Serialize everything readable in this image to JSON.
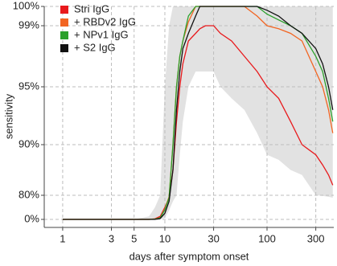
{
  "chart_data": {
    "type": "line",
    "xlabel": "days after symptom onset",
    "ylabel": "sensitivity",
    "xscale": "log",
    "xlim": [
      0.66,
      450
    ],
    "xticks": [
      1,
      3,
      5,
      10,
      30,
      100,
      300
    ],
    "ylim": [
      0,
      100
    ],
    "yticks": [
      {
        "value": 0,
        "label": "0%"
      },
      {
        "value": 80,
        "label": "80%"
      },
      {
        "value": 90,
        "label": "90%"
      },
      {
        "value": 95,
        "label": "95%"
      },
      {
        "value": 99,
        "label": "99%"
      },
      {
        "value": 100,
        "label": "100%"
      }
    ],
    "grid": true,
    "legend": "upper left",
    "x": [
      1,
      5,
      7,
      8,
      9,
      10,
      11,
      12,
      13,
      14,
      15,
      17,
      20,
      22,
      25,
      30,
      35,
      45,
      60,
      80,
      100,
      130,
      170,
      220,
      300,
      350,
      400,
      440
    ],
    "band": {
      "color": "#e2e2e2",
      "lower": [
        0,
        0,
        0,
        0,
        0,
        5,
        30,
        60,
        80,
        88,
        92,
        95,
        96,
        96,
        96,
        96,
        95,
        94,
        93,
        91,
        88,
        87,
        85,
        84,
        80,
        78,
        75,
        72
      ],
      "upper": [
        0,
        0,
        10,
        40,
        80,
        95,
        99,
        100,
        100,
        100,
        100,
        100,
        100,
        100,
        100,
        100,
        100,
        100,
        100,
        100,
        100,
        100,
        100,
        100,
        100,
        100,
        100,
        100
      ]
    },
    "series": [
      {
        "name": "Stri IgG",
        "color": "#e8191c",
        "values": [
          0,
          0,
          0,
          2,
          10,
          40,
          70,
          85,
          92,
          95,
          96.5,
          98,
          98.5,
          98.8,
          99,
          99,
          98.5,
          98,
          97,
          96,
          95,
          94,
          92,
          90,
          88,
          86,
          84,
          82
        ]
      },
      {
        "name": "+ RBDv2 IgG",
        "color": "#f26522",
        "values": [
          0,
          0,
          0,
          1,
          6,
          35,
          75,
          90,
          95,
          97,
          98,
          99.2,
          100,
          100,
          100,
          100,
          100,
          100,
          100,
          99.5,
          99,
          98.8,
          98.5,
          98,
          96,
          95,
          93,
          91
        ]
      },
      {
        "name": "+ NPv1 IgG",
        "color": "#2ca02c",
        "values": [
          0,
          0,
          0,
          1,
          5,
          32,
          72,
          90,
          95,
          97,
          98,
          99.5,
          100,
          100,
          100,
          100,
          100,
          100,
          100,
          100,
          99.6,
          99.3,
          99,
          98.5,
          97,
          96,
          94,
          92
        ]
      },
      {
        "name": "+ S2 IgG",
        "color": "#111111",
        "values": [
          0,
          0,
          0,
          0,
          3,
          20,
          60,
          85,
          93,
          96,
          97.5,
          98.5,
          99.5,
          100,
          100,
          100,
          100,
          100,
          100,
          100,
          99.8,
          99.5,
          99,
          98.5,
          97.5,
          96.5,
          95,
          93
        ]
      }
    ]
  }
}
